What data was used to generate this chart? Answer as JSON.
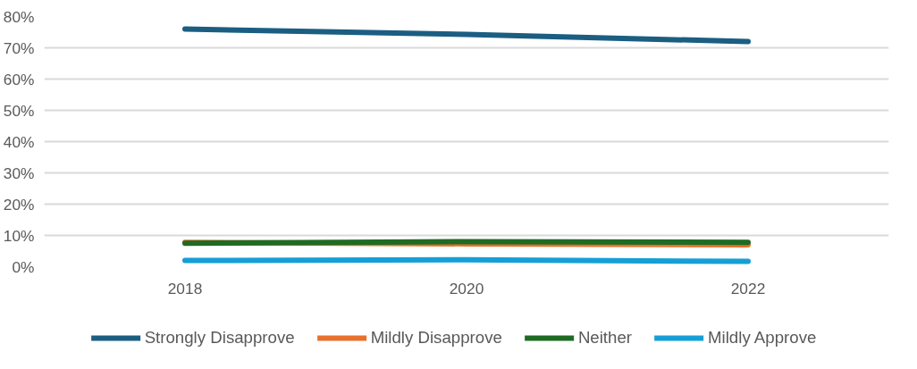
{
  "chart_data": {
    "type": "line",
    "categories": [
      "2018",
      "2020",
      "2022"
    ],
    "series": [
      {
        "name": "Strongly Disapprove",
        "color": "#1b5e82",
        "values": [
          76,
          74.3,
          72
        ]
      },
      {
        "name": "Mildly Disapprove",
        "color": "#e8712d",
        "values": [
          7.8,
          7.3,
          7
        ]
      },
      {
        "name": "Neither",
        "color": "#1e6b23",
        "values": [
          7.5,
          8,
          7.8
        ]
      },
      {
        "name": "Mildly Approve",
        "color": "#159fd6",
        "values": [
          2,
          2.2,
          1.7
        ]
      }
    ],
    "ylim": [
      0,
      80
    ],
    "yticks": [
      {
        "value": 0,
        "label": "0%"
      },
      {
        "value": 10,
        "label": "10%"
      },
      {
        "value": 20,
        "label": "20%"
      },
      {
        "value": 30,
        "label": "30%"
      },
      {
        "value": 40,
        "label": "40%"
      },
      {
        "value": 50,
        "label": "50%"
      },
      {
        "value": 60,
        "label": "60%"
      },
      {
        "value": 70,
        "label": "70%"
      },
      {
        "value": 80,
        "label": "80%"
      }
    ],
    "grid": "y",
    "legend": "bottom",
    "marker": "none",
    "line_style": "solid"
  }
}
